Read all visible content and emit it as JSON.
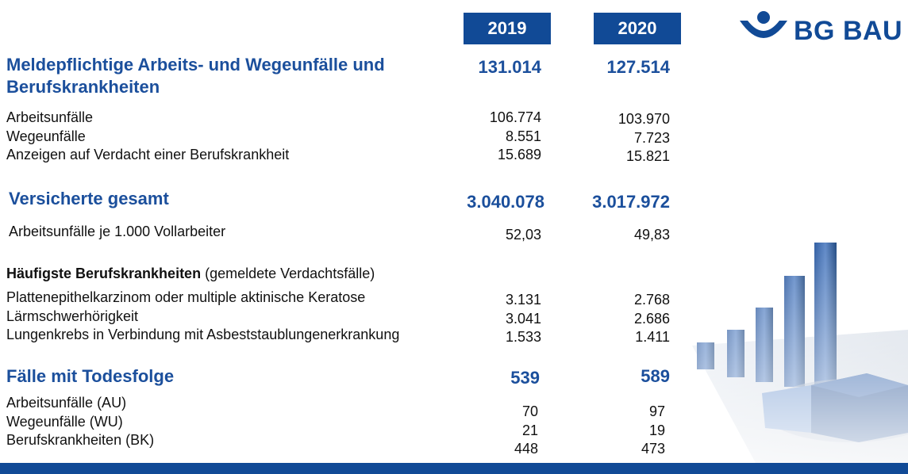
{
  "years": {
    "y2019": "2019",
    "y2020": "2020"
  },
  "logo": {
    "text": "BG BAU",
    "icon": "bg-bau-logo-icon"
  },
  "sections": {
    "meldepflichtig": {
      "title": "Meldepflichtige Arbeits- und Wegeunfälle und Berufskrankheiten",
      "title_line1": "Meldepflichtige Arbeits- und Wegeunfälle und",
      "title_line2": "Berufskrankheiten",
      "v2019": "131.014",
      "v2020": "127.514",
      "rows": [
        {
          "label": "Arbeitsunfälle",
          "v2019": "106.774",
          "v2020": "103.970"
        },
        {
          "label": "Wegeunfälle",
          "v2019": "8.551",
          "v2020": "7.723"
        },
        {
          "label": "Anzeigen auf Verdacht einer Berufskrankheit",
          "v2019": "15.689",
          "v2020": "15.821"
        }
      ]
    },
    "versicherte": {
      "title": "Versicherte gesamt",
      "v2019": "3.040.078",
      "v2020": "3.017.972",
      "rows": [
        {
          "label": "Arbeitsunfälle je 1.000 Vollarbeiter",
          "v2019": "52,03",
          "v2020": "49,83"
        }
      ]
    },
    "haeufigste": {
      "title_bold": "Häufigste Berufskrankheiten",
      "title_rest": "(gemeldete Verdachtsfälle)",
      "rows": [
        {
          "label": "Plattenepithelkarzinom oder multiple aktinische Keratose",
          "v2019": "3.131",
          "v2020": "2.768"
        },
        {
          "label": "Lärmschwerhörigkeit",
          "v2019": "3.041",
          "v2020": "2.686"
        },
        {
          "label": "Lungenkrebs in Verbindung mit Asbeststaublungenerkrankung",
          "v2019": "1.533",
          "v2020": "1.411"
        }
      ]
    },
    "todesfolge": {
      "title": "Fälle mit Todesfolge",
      "v2019": "539",
      "v2020": "589",
      "rows": [
        {
          "label": "Arbeitsunfälle (AU)",
          "v2019": "70",
          "v2020": "97"
        },
        {
          "label": "Wegeunfälle (WU)",
          "v2019": "21",
          "v2020": "19"
        },
        {
          "label": "Berufskrankheiten (BK)",
          "v2019": "448",
          "v2020": "473"
        }
      ]
    }
  },
  "colors": {
    "brand_blue": "#114a96",
    "heading_blue": "#1b4f9c"
  },
  "decoration": {
    "icon": "bar-and-pie-chart-graphic"
  }
}
